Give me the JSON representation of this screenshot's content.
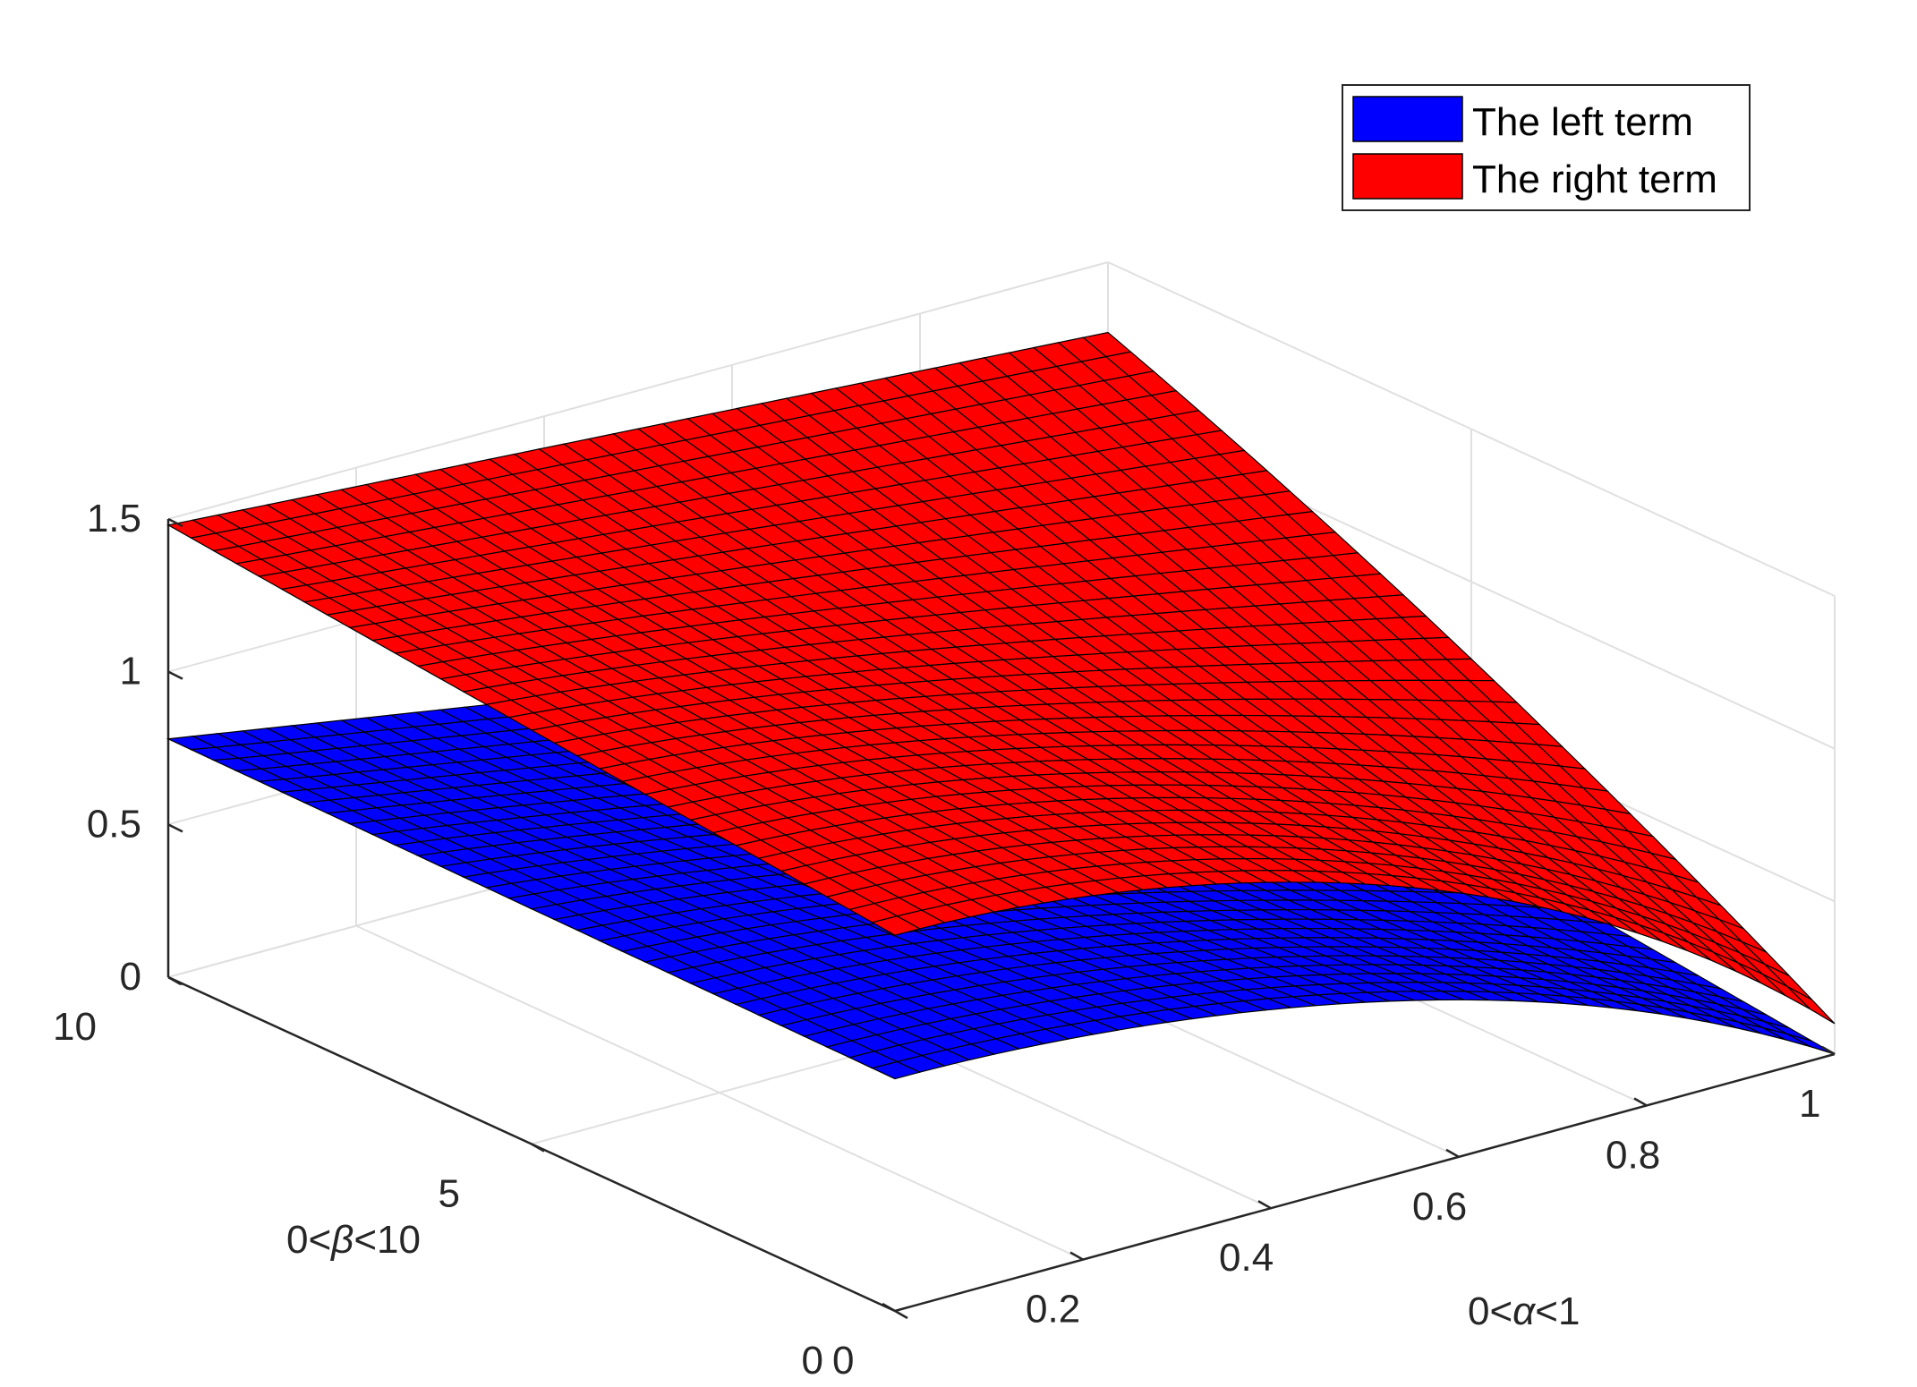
{
  "chart_data": {
    "type": "surface",
    "title": "",
    "x_axis": {
      "label_prefix": "0<",
      "label_symbol": "α",
      "label_suffix": "<1",
      "range": [
        0,
        1
      ],
      "ticks": [
        "0",
        "0.2",
        "0.4",
        "0.6",
        "0.8",
        "1"
      ]
    },
    "y_axis": {
      "label_prefix": "0<",
      "label_symbol": "β",
      "label_suffix": "<10",
      "range": [
        0,
        10
      ],
      "ticks": [
        "0",
        "5",
        "10"
      ]
    },
    "z_axis": {
      "label": "",
      "range": [
        0,
        1.5
      ],
      "ticks": [
        "0",
        "0.5",
        "1",
        "1.5"
      ]
    },
    "grid": true,
    "legend": {
      "placement": "top-right",
      "entries": [
        "The left term",
        "The right term"
      ]
    },
    "series": [
      {
        "name": "The left term",
        "color": "#0000ff",
        "corners": {
          "a0_b0": 0.76,
          "a0_b10": 0.78,
          "a1_b0": 0.0,
          "a1_b10": 0.05
        }
      },
      {
        "name": "The right term",
        "color": "#ff0000",
        "corners": {
          "a0_b0": 1.23,
          "a0_b10": 1.48,
          "a1_b0": 0.1,
          "a1_b10": 1.18
        }
      }
    ],
    "mesh": {
      "alpha_steps": 38,
      "beta_steps": 32
    }
  }
}
